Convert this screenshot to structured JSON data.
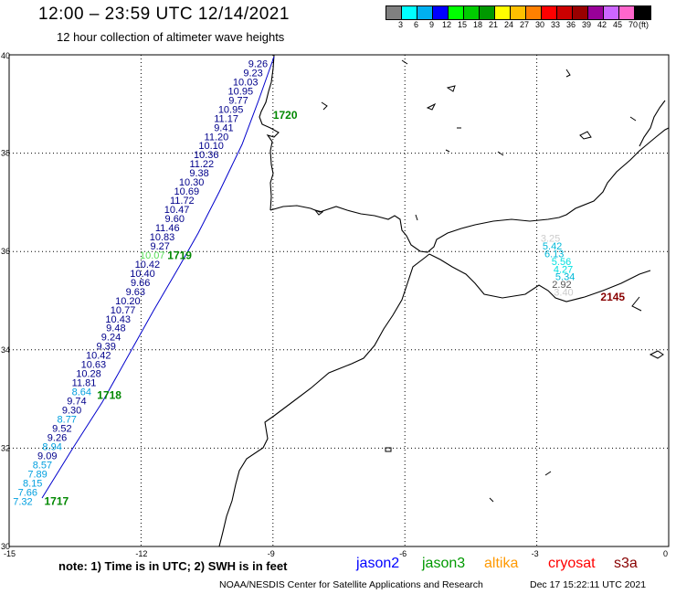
{
  "title": "12:00 – 23:59 UTC 12/14/2021",
  "subtitle": "12 hour collection of altimeter wave heights",
  "legend": {
    "colors": [
      "#808080",
      "#00ffff",
      "#00b0f0",
      "#0000ff",
      "#00ff00",
      "#00cc00",
      "#009900",
      "#ffff00",
      "#ffc000",
      "#ff8000",
      "#ff0000",
      "#cc0000",
      "#990000",
      "#990099",
      "#cc66ff",
      "#ff66cc",
      "#000000"
    ],
    "ticks": [
      "3",
      "6",
      "9",
      "12",
      "15",
      "18",
      "21",
      "24",
      "27",
      "30",
      "33",
      "36",
      "39",
      "42",
      "45",
      "70",
      "(ft)"
    ]
  },
  "axes": {
    "lat_ticks": [
      "40",
      "38",
      "36",
      "34",
      "32",
      "30"
    ],
    "lon_ticks": [
      "-15",
      "-12",
      "-9",
      "-6",
      "-3",
      "0"
    ]
  },
  "hour_labels": [
    {
      "text": "1720",
      "lon": -9.0,
      "lat": 38.7,
      "color": "#008800"
    },
    {
      "text": "1719",
      "lon": -11.4,
      "lat": 35.85,
      "color": "#008800"
    },
    {
      "text": "1718",
      "lon": -13.0,
      "lat": 33.0,
      "color": "#008800"
    },
    {
      "text": "1717",
      "lon": -14.2,
      "lat": 30.85,
      "color": "#008800"
    },
    {
      "text": "2145",
      "lon": -1.55,
      "lat": 35.0,
      "color": "#880000"
    }
  ],
  "jason_track": [
    {
      "v": "9.26",
      "c": "#00008b"
    },
    {
      "v": "9.23",
      "c": "#00008b"
    },
    {
      "v": "10.03",
      "c": "#00008b"
    },
    {
      "v": "10.95",
      "c": "#00008b"
    },
    {
      "v": "9.77",
      "c": "#00008b"
    },
    {
      "v": "10.95",
      "c": "#00008b"
    },
    {
      "v": "11.17",
      "c": "#00008b"
    },
    {
      "v": "9.41",
      "c": "#00008b"
    },
    {
      "v": "11.20",
      "c": "#00008b"
    },
    {
      "v": "10.10",
      "c": "#00008b"
    },
    {
      "v": "10.36",
      "c": "#00008b"
    },
    {
      "v": "11.22",
      "c": "#00008b"
    },
    {
      "v": "9.38",
      "c": "#00008b"
    },
    {
      "v": "10.30",
      "c": "#00008b"
    },
    {
      "v": "10.69",
      "c": "#00008b"
    },
    {
      "v": "11.72",
      "c": "#00008b"
    },
    {
      "v": "10.47",
      "c": "#00008b"
    },
    {
      "v": "9.60",
      "c": "#00008b"
    },
    {
      "v": "11.46",
      "c": "#00008b"
    },
    {
      "v": "10.83",
      "c": "#00008b"
    },
    {
      "v": "9.27",
      "c": "#00008b"
    },
    {
      "v": "10.07",
      "c": "#55dd55"
    },
    {
      "v": "10.42",
      "c": "#00008b"
    },
    {
      "v": "10.40",
      "c": "#00008b"
    },
    {
      "v": "9.66",
      "c": "#00008b"
    },
    {
      "v": "9.63",
      "c": "#00008b"
    },
    {
      "v": "10.20",
      "c": "#00008b"
    },
    {
      "v": "10.77",
      "c": "#00008b"
    },
    {
      "v": "10.43",
      "c": "#00008b"
    },
    {
      "v": "9.48",
      "c": "#00008b"
    },
    {
      "v": "9.24",
      "c": "#00008b"
    },
    {
      "v": "9.39",
      "c": "#00008b"
    },
    {
      "v": "10.42",
      "c": "#00008b"
    },
    {
      "v": "10.63",
      "c": "#00008b"
    },
    {
      "v": "10.28",
      "c": "#00008b"
    },
    {
      "v": "11.81",
      "c": "#00008b"
    },
    {
      "v": "8.64",
      "c": "#009fdf"
    },
    {
      "v": "9.74",
      "c": "#00008b"
    },
    {
      "v": "9.30",
      "c": "#00008b"
    },
    {
      "v": "8.77",
      "c": "#009fdf"
    },
    {
      "v": "9.52",
      "c": "#00008b"
    },
    {
      "v": "9.26",
      "c": "#00008b"
    },
    {
      "v": "8.94",
      "c": "#009fdf"
    },
    {
      "v": "9.09",
      "c": "#00008b"
    },
    {
      "v": "8.57",
      "c": "#009fdf"
    },
    {
      "v": "7.89",
      "c": "#009fdf"
    },
    {
      "v": "8.15",
      "c": "#009fdf"
    },
    {
      "v": "7.66",
      "c": "#009fdf"
    },
    {
      "v": "7.32",
      "c": "#009fdf"
    }
  ],
  "s3a_track": [
    {
      "v": "3.25",
      "c": "#cccccc"
    },
    {
      "v": "5.42",
      "c": "#00b8d8"
    },
    {
      "v": "6.13",
      "c": "#00b8d8"
    },
    {
      "v": "5.56",
      "c": "#00e0e0"
    },
    {
      "v": "4.27",
      "c": "#00e0e0"
    },
    {
      "v": "5.34",
      "c": "#00b8d8"
    },
    {
      "v": "2.92",
      "c": "#555555"
    },
    {
      "v": "3.40",
      "c": "#cccccc"
    }
  ],
  "note": "note: 1) Time is in UTC; 2) SWH is in feet",
  "satellites": [
    {
      "name": "jason2",
      "color": "#0000ff"
    },
    {
      "name": "jason3",
      "color": "#009900"
    },
    {
      "name": "altika",
      "color": "#ff9900"
    },
    {
      "name": "cryosat",
      "color": "#ff0000"
    },
    {
      "name": "s3a",
      "color": "#880000"
    }
  ],
  "footer_left": "NOAA/NESDIS Center for Satellite Applications and Research",
  "footer_right": "Dec 17 15:22:11 UTC 2021"
}
